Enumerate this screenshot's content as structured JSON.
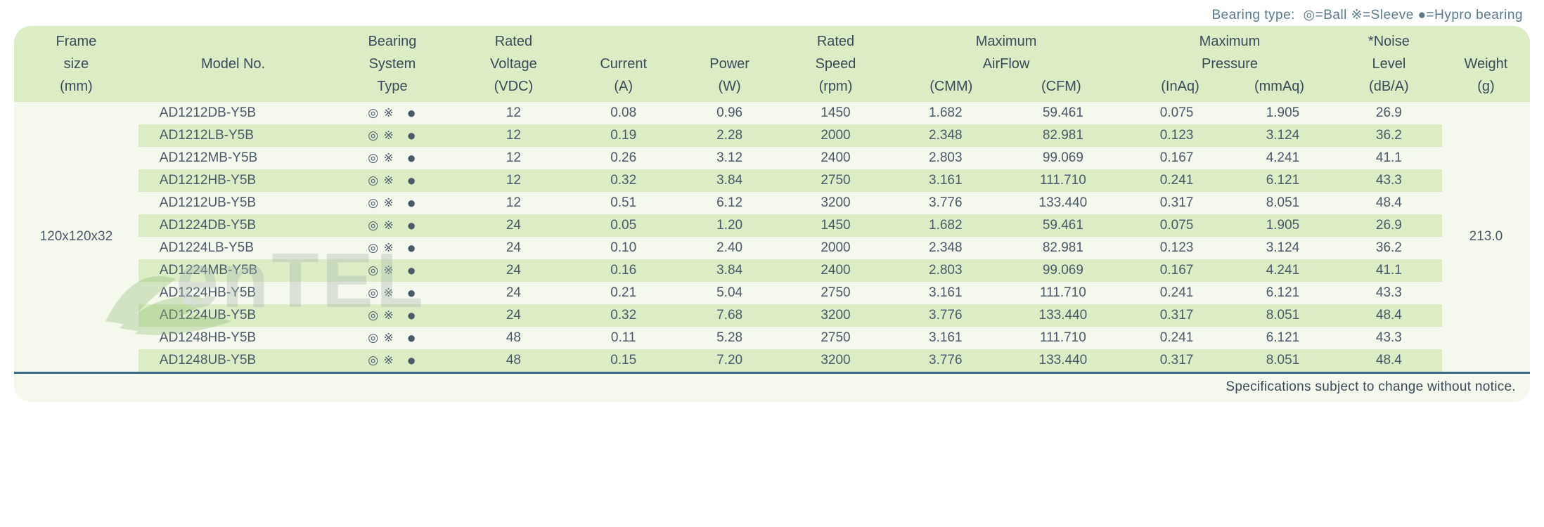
{
  "legend": {
    "label": "Bearing type:",
    "ball_sym": "◎",
    "ball_txt": "=Ball",
    "sleeve_sym": "※",
    "sleeve_txt": "=Sleeve",
    "hypro_sym": "●",
    "hypro_txt": "=Hypro bearing"
  },
  "headers": {
    "frame": [
      "Frame",
      "size",
      "(mm)"
    ],
    "model": [
      "Model No."
    ],
    "bearing": [
      "Bearing",
      "System",
      "Type"
    ],
    "voltage": [
      "Rated",
      "Voltage",
      "(VDC)"
    ],
    "current": [
      "Current",
      "(A)"
    ],
    "power": [
      "Power",
      "(W)"
    ],
    "speed": [
      "Rated",
      "Speed",
      "(rpm)"
    ],
    "airflow": "Maximum",
    "airflow2": "AirFlow",
    "airflow_cmm": "(CMM)",
    "airflow_cfm": "(CFM)",
    "pressure": "Maximum",
    "pressure2": "Pressure",
    "pressure_inaq": "(InAq)",
    "pressure_mmaq": "(mmAq)",
    "noise": [
      "*Noise",
      "Level",
      "(dB/A)"
    ],
    "weight": [
      "Weight",
      "(g)"
    ]
  },
  "frame_size": "120x120x32",
  "weight": "213.0",
  "bearing_display": {
    "ball": "◎",
    "sleeve": "※",
    "hypro": "●"
  },
  "rows": [
    {
      "model": "AD1212DB-Y5B",
      "voltage": "12",
      "current": "0.08",
      "power": "0.96",
      "speed": "1450",
      "cmm": "1.682",
      "cfm": "59.461",
      "inaq": "0.075",
      "mmaq": "1.905",
      "noise": "26.9"
    },
    {
      "model": "AD1212LB-Y5B",
      "voltage": "12",
      "current": "0.19",
      "power": "2.28",
      "speed": "2000",
      "cmm": "2.348",
      "cfm": "82.981",
      "inaq": "0.123",
      "mmaq": "3.124",
      "noise": "36.2"
    },
    {
      "model": "AD1212MB-Y5B",
      "voltage": "12",
      "current": "0.26",
      "power": "3.12",
      "speed": "2400",
      "cmm": "2.803",
      "cfm": "99.069",
      "inaq": "0.167",
      "mmaq": "4.241",
      "noise": "41.1"
    },
    {
      "model": "AD1212HB-Y5B",
      "voltage": "12",
      "current": "0.32",
      "power": "3.84",
      "speed": "2750",
      "cmm": "3.161",
      "cfm": "111.710",
      "inaq": "0.241",
      "mmaq": "6.121",
      "noise": "43.3"
    },
    {
      "model": "AD1212UB-Y5B",
      "voltage": "12",
      "current": "0.51",
      "power": "6.12",
      "speed": "3200",
      "cmm": "3.776",
      "cfm": "133.440",
      "inaq": "0.317",
      "mmaq": "8.051",
      "noise": "48.4"
    },
    {
      "model": "AD1224DB-Y5B",
      "voltage": "24",
      "current": "0.05",
      "power": "1.20",
      "speed": "1450",
      "cmm": "1.682",
      "cfm": "59.461",
      "inaq": "0.075",
      "mmaq": "1.905",
      "noise": "26.9"
    },
    {
      "model": "AD1224LB-Y5B",
      "voltage": "24",
      "current": "0.10",
      "power": "2.40",
      "speed": "2000",
      "cmm": "2.348",
      "cfm": "82.981",
      "inaq": "0.123",
      "mmaq": "3.124",
      "noise": "36.2"
    },
    {
      "model": "AD1224MB-Y5B",
      "voltage": "24",
      "current": "0.16",
      "power": "3.84",
      "speed": "2400",
      "cmm": "2.803",
      "cfm": "99.069",
      "inaq": "0.167",
      "mmaq": "4.241",
      "noise": "41.1"
    },
    {
      "model": "AD1224HB-Y5B",
      "voltage": "24",
      "current": "0.21",
      "power": "5.04",
      "speed": "2750",
      "cmm": "3.161",
      "cfm": "111.710",
      "inaq": "0.241",
      "mmaq": "6.121",
      "noise": "43.3"
    },
    {
      "model": "AD1224UB-Y5B",
      "voltage": "24",
      "current": "0.32",
      "power": "7.68",
      "speed": "3200",
      "cmm": "3.776",
      "cfm": "133.440",
      "inaq": "0.317",
      "mmaq": "8.051",
      "noise": "48.4"
    },
    {
      "model": "AD1248HB-Y5B",
      "voltage": "48",
      "current": "0.11",
      "power": "5.28",
      "speed": "2750",
      "cmm": "3.161",
      "cfm": "111.710",
      "inaq": "0.241",
      "mmaq": "6.121",
      "noise": "43.3"
    },
    {
      "model": "AD1248UB-Y5B",
      "voltage": "48",
      "current": "0.15",
      "power": "7.20",
      "speed": "3200",
      "cmm": "3.776",
      "cfm": "133.440",
      "inaq": "0.317",
      "mmaq": "8.051",
      "noise": "48.4"
    }
  ],
  "footnote": "Specifications subject to change without notice.",
  "colors": {
    "header_bg": "#dcecc5",
    "body_bg": "#f5f8ed",
    "text": "#3a4a5a",
    "rule": "#3a6a8a"
  },
  "col_widths_pct": [
    8.2,
    12.5,
    8.5,
    7.5,
    7.0,
    7.0,
    7.0,
    7.5,
    8.0,
    7.0,
    7.0,
    7.0,
    5.8
  ]
}
